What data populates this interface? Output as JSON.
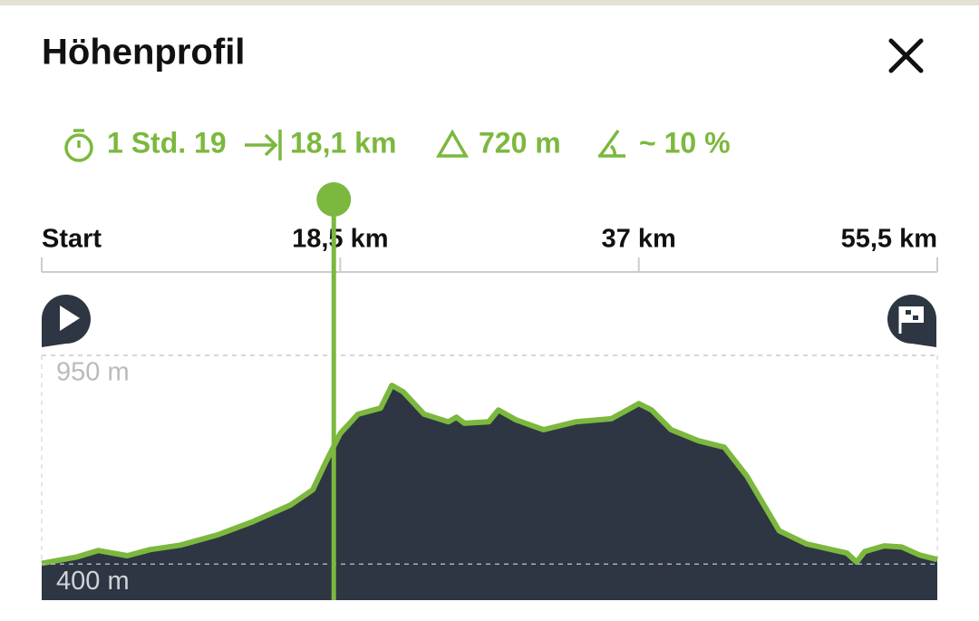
{
  "header": {
    "title": "Höhenprofil"
  },
  "stats": {
    "duration": "1 Std. 19",
    "distance": "18,1 km",
    "ascent": "720 m",
    "slope": "~ 10 %"
  },
  "chart_data": {
    "type": "area",
    "x": [
      0,
      2.2,
      3.5,
      5.3,
      6.7,
      8.6,
      10.9,
      13.1,
      15.4,
      16.8,
      17.6,
      18.5,
      19.6,
      21.0,
      21.7,
      22.4,
      23.7,
      25.2,
      25.7,
      26.2,
      27.7,
      28.3,
      29.4,
      31.1,
      33.1,
      35.3,
      37.0,
      37.8,
      39.0,
      40.7,
      42.3,
      43.7,
      45.7,
      47.4,
      49.9,
      50.5,
      51.0,
      52.2,
      53.3,
      54.4,
      55.5
    ],
    "values": [
      402,
      419,
      436,
      422,
      438,
      450,
      477,
      512,
      555,
      596,
      668,
      744,
      795,
      811,
      871,
      854,
      795,
      775,
      787,
      771,
      775,
      806,
      780,
      754,
      775,
      783,
      823,
      806,
      754,
      725,
      708,
      632,
      488,
      453,
      429,
      405,
      433,
      448,
      445,
      424,
      412
    ],
    "xlim": [
      0,
      55.5
    ],
    "ylim": [
      305,
      950
    ],
    "xticks": [
      {
        "value": 0,
        "label": "Start"
      },
      {
        "value": 18.5,
        "label": "18,5 km"
      },
      {
        "value": 37,
        "label": "37 km"
      },
      {
        "value": 55.5,
        "label": "55,5 km"
      }
    ],
    "yticks": [
      {
        "value": 950,
        "label": "950 m"
      },
      {
        "value": 400,
        "label": "400 m"
      }
    ],
    "fill_color": "#2d3642",
    "line_color": "#7cb83e",
    "cursor_x": 18.1
  }
}
